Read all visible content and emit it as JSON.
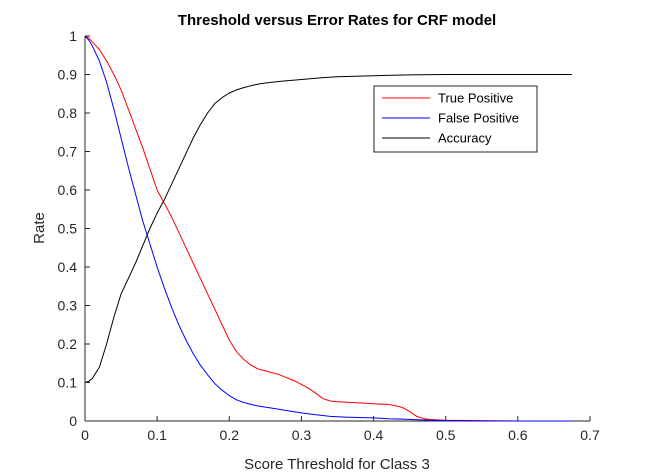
{
  "chart_data": {
    "type": "line",
    "title": "Threshold versus Error Rates for CRF model",
    "xlabel": "Score Threshold for Class 3",
    "ylabel": "Rate",
    "xlim": [
      0,
      0.7
    ],
    "ylim": [
      0,
      1
    ],
    "xticks": [
      0,
      0.1,
      0.2,
      0.3,
      0.4,
      0.5,
      0.6,
      0.7
    ],
    "yticks": [
      0,
      0.1,
      0.2,
      0.3,
      0.4,
      0.5,
      0.6,
      0.7,
      0.8,
      0.9,
      1
    ],
    "xtick_labels": [
      "0",
      "0.1",
      "0.2",
      "0.3",
      "0.4",
      "0.5",
      "0.6",
      "0.7"
    ],
    "ytick_labels": [
      "0",
      "0.1",
      "0.2",
      "0.3",
      "0.4",
      "0.5",
      "0.6",
      "0.7",
      "0.8",
      "0.9",
      "1"
    ],
    "grid": false,
    "legend_position": "top-right",
    "series": [
      {
        "name": "True Positive",
        "color": "#ff0000",
        "x": [
          0,
          0.005,
          0.01,
          0.02,
          0.03,
          0.04,
          0.05,
          0.06,
          0.07,
          0.08,
          0.09,
          0.1,
          0.11,
          0.12,
          0.13,
          0.14,
          0.15,
          0.16,
          0.17,
          0.18,
          0.19,
          0.2,
          0.21,
          0.22,
          0.23,
          0.24,
          0.25,
          0.26,
          0.27,
          0.28,
          0.29,
          0.3,
          0.31,
          0.32,
          0.33,
          0.34,
          0.35,
          0.36,
          0.37,
          0.38,
          0.39,
          0.4,
          0.41,
          0.42,
          0.43,
          0.44,
          0.45,
          0.46,
          0.47,
          0.48,
          0.5,
          0.55,
          0.6,
          0.65,
          0.675
        ],
        "y": [
          1.0,
          0.995,
          0.985,
          0.965,
          0.935,
          0.9,
          0.86,
          0.81,
          0.76,
          0.71,
          0.655,
          0.6,
          0.565,
          0.53,
          0.49,
          0.45,
          0.41,
          0.37,
          0.33,
          0.29,
          0.25,
          0.21,
          0.18,
          0.16,
          0.145,
          0.135,
          0.13,
          0.125,
          0.12,
          0.112,
          0.105,
          0.095,
          0.085,
          0.072,
          0.058,
          0.052,
          0.05,
          0.049,
          0.048,
          0.047,
          0.046,
          0.045,
          0.044,
          0.043,
          0.04,
          0.035,
          0.025,
          0.012,
          0.006,
          0.004,
          0.002,
          0.001,
          0.0,
          0.0,
          0.0
        ]
      },
      {
        "name": "False Positive",
        "color": "#0000ff",
        "x": [
          0,
          0.005,
          0.01,
          0.02,
          0.03,
          0.04,
          0.05,
          0.06,
          0.07,
          0.08,
          0.09,
          0.1,
          0.11,
          0.12,
          0.13,
          0.14,
          0.15,
          0.16,
          0.17,
          0.18,
          0.19,
          0.2,
          0.21,
          0.22,
          0.23,
          0.24,
          0.25,
          0.26,
          0.27,
          0.28,
          0.29,
          0.3,
          0.32,
          0.34,
          0.36,
          0.38,
          0.4,
          0.42,
          0.44,
          0.46,
          0.48,
          0.5,
          0.55,
          0.6,
          0.65,
          0.675
        ],
        "y": [
          1.0,
          0.99,
          0.975,
          0.935,
          0.88,
          0.81,
          0.735,
          0.66,
          0.59,
          0.52,
          0.46,
          0.4,
          0.345,
          0.295,
          0.25,
          0.21,
          0.175,
          0.145,
          0.12,
          0.097,
          0.08,
          0.066,
          0.055,
          0.048,
          0.043,
          0.039,
          0.036,
          0.033,
          0.03,
          0.027,
          0.024,
          0.021,
          0.016,
          0.012,
          0.01,
          0.009,
          0.008,
          0.006,
          0.005,
          0.003,
          0.002,
          0.001,
          0.0,
          0.0,
          0.0,
          0.0
        ]
      },
      {
        "name": "Accuracy",
        "color": "#000000",
        "x": [
          0,
          0.005,
          0.01,
          0.02,
          0.03,
          0.04,
          0.05,
          0.06,
          0.07,
          0.08,
          0.09,
          0.1,
          0.11,
          0.12,
          0.13,
          0.14,
          0.15,
          0.16,
          0.17,
          0.18,
          0.19,
          0.2,
          0.21,
          0.22,
          0.23,
          0.24,
          0.25,
          0.27,
          0.3,
          0.33,
          0.35,
          0.4,
          0.45,
          0.5,
          0.55,
          0.6,
          0.65,
          0.675
        ],
        "y": [
          0.1,
          0.103,
          0.11,
          0.14,
          0.2,
          0.27,
          0.33,
          0.37,
          0.41,
          0.455,
          0.5,
          0.54,
          0.575,
          0.615,
          0.655,
          0.695,
          0.735,
          0.77,
          0.8,
          0.825,
          0.84,
          0.852,
          0.86,
          0.866,
          0.871,
          0.875,
          0.878,
          0.882,
          0.887,
          0.892,
          0.894,
          0.897,
          0.899,
          0.9,
          0.9,
          0.9,
          0.9,
          0.9
        ]
      }
    ]
  }
}
